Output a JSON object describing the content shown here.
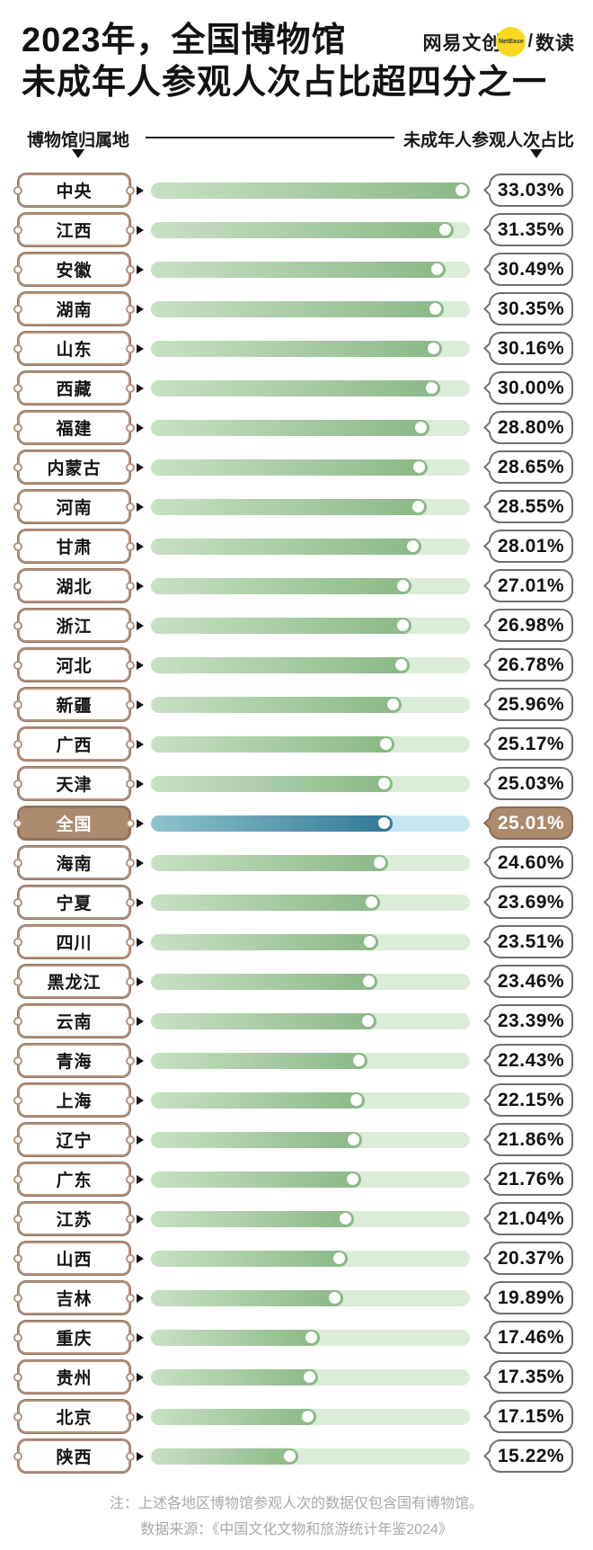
{
  "header": {
    "title_line1": "2023年，全国博物馆",
    "title_line2": "未成年人参观人次占比超四分之一",
    "logo": {
      "brand": "网易文创",
      "badge": "NetEase",
      "divider": "/",
      "sub_brand": "数读"
    }
  },
  "columns": {
    "left_label": "博物馆归属地",
    "right_label": "未成年人参观人次占比"
  },
  "chart_data": {
    "type": "bar",
    "orientation": "horizontal",
    "title": "2023年，全国博物馆未成年人参观人次占比超四分之一",
    "categories": [
      "中央",
      "江西",
      "安徽",
      "湖南",
      "山东",
      "西藏",
      "福建",
      "内蒙古",
      "河南",
      "甘肃",
      "湖北",
      "浙江",
      "河北",
      "新疆",
      "广西",
      "天津",
      "全国",
      "海南",
      "宁夏",
      "四川",
      "黑龙江",
      "云南",
      "青海",
      "上海",
      "辽宁",
      "广东",
      "江苏",
      "山西",
      "吉林",
      "重庆",
      "贵州",
      "北京",
      "陕西"
    ],
    "values": [
      33.03,
      31.35,
      30.49,
      30.35,
      30.16,
      30.0,
      28.8,
      28.65,
      28.55,
      28.01,
      27.01,
      26.98,
      26.78,
      25.96,
      25.17,
      25.03,
      25.01,
      24.6,
      23.69,
      23.51,
      23.46,
      23.39,
      22.43,
      22.15,
      21.86,
      21.76,
      21.04,
      20.37,
      19.89,
      17.46,
      17.35,
      17.15,
      15.22
    ],
    "value_suffix": "%",
    "value_decimals": 2,
    "highlight_category": "全国",
    "xlim": [
      0,
      33.03
    ],
    "grid": false,
    "legend": false
  },
  "footer": {
    "note_line1": "注：上述各地区博物馆参观人次的数据仅包含国有博物馆。",
    "note_line2": "数据来源：《中国文化文物和旅游统计年鉴2024》"
  },
  "colors": {
    "background": "#ffffff",
    "title_text": "#121212",
    "logo_yellow": "#f8d91f",
    "ticket_border": "#b6927c",
    "bar_track_green": "#dbecd8",
    "bar_fill_green_start": "#c8e0c4",
    "bar_fill_green_end": "#8ab886",
    "highlight_track_blue": "#c9e6f0",
    "highlight_fill_blue_start": "#90c3cd",
    "highlight_fill_blue_end": "#2f7795",
    "highlight_brown": "#ab8a6e",
    "bubble_border": "#6f6f6f",
    "note_gray": "#a9a9a9"
  }
}
